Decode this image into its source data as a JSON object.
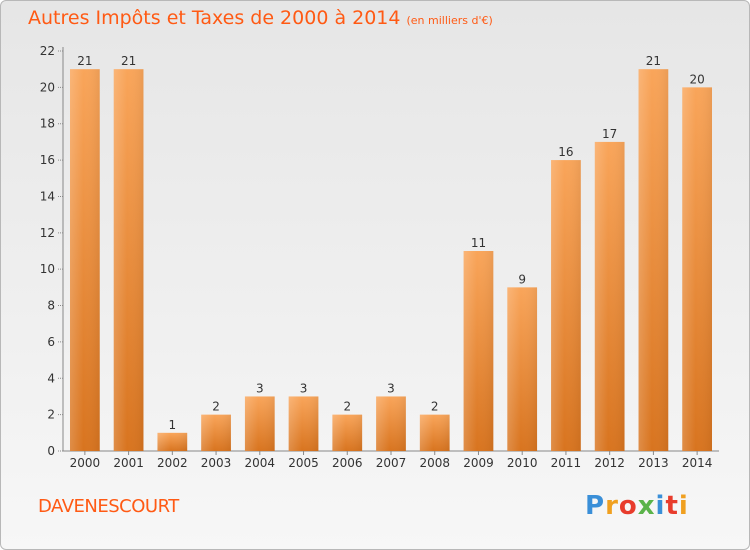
{
  "title": "Autres Impôts et Taxes de 2000 à 2014",
  "unit": "(en milliers d'€)",
  "town": "DAVENESCOURT",
  "logo": {
    "letters": [
      "P",
      "r",
      "o",
      "x",
      "i",
      "t",
      "i"
    ],
    "colors": [
      "#3a8fd8",
      "#f0a020",
      "#e83c2c",
      "#5bb34a",
      "#3a8fd8",
      "#e83c2c",
      "#f0a020"
    ]
  },
  "colors": {
    "accent": "#ff5a14",
    "bar_light": "#f9a55a",
    "bar_dark": "#d8741f"
  },
  "chart_data": {
    "type": "bar",
    "title": "Autres Impôts et Taxes de 2000 à 2014",
    "subtitle": "(en milliers d'€)",
    "xlabel": "",
    "ylabel": "",
    "categories": [
      "2000",
      "2001",
      "2002",
      "2003",
      "2004",
      "2005",
      "2006",
      "2007",
      "2008",
      "2009",
      "2010",
      "2011",
      "2012",
      "2013",
      "2014"
    ],
    "values": [
      21,
      21,
      1,
      2,
      3,
      3,
      2,
      3,
      2,
      11,
      9,
      16,
      17,
      21,
      20
    ],
    "ylim": [
      0,
      22
    ],
    "yticks": [
      0,
      2,
      4,
      6,
      8,
      10,
      12,
      14,
      16,
      18,
      20,
      22
    ],
    "grid": false,
    "legend": "none"
  }
}
